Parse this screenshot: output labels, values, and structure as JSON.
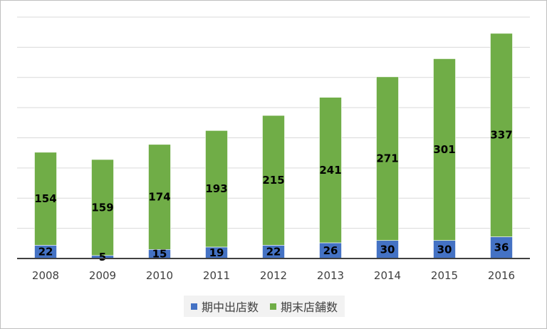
{
  "chart_data": {
    "type": "bar",
    "stacked": true,
    "categories": [
      "2008",
      "2009",
      "2010",
      "2011",
      "2012",
      "2013",
      "2014",
      "2015",
      "2016"
    ],
    "series": [
      {
        "name": "期中出店数",
        "color": "#4472c4",
        "values": [
          22,
          5,
          15,
          19,
          22,
          26,
          30,
          30,
          36
        ]
      },
      {
        "name": "期末店舗数",
        "color": "#70ad47",
        "values": [
          154,
          159,
          174,
          193,
          215,
          241,
          271,
          301,
          337
        ]
      }
    ],
    "ylim": [
      0,
      400
    ],
    "y_gridlines": [
      0,
      50,
      100,
      150,
      200,
      250,
      300,
      350,
      400
    ],
    "grid": true,
    "y_tick_labels_shown": false,
    "legend_position": "bottom"
  }
}
